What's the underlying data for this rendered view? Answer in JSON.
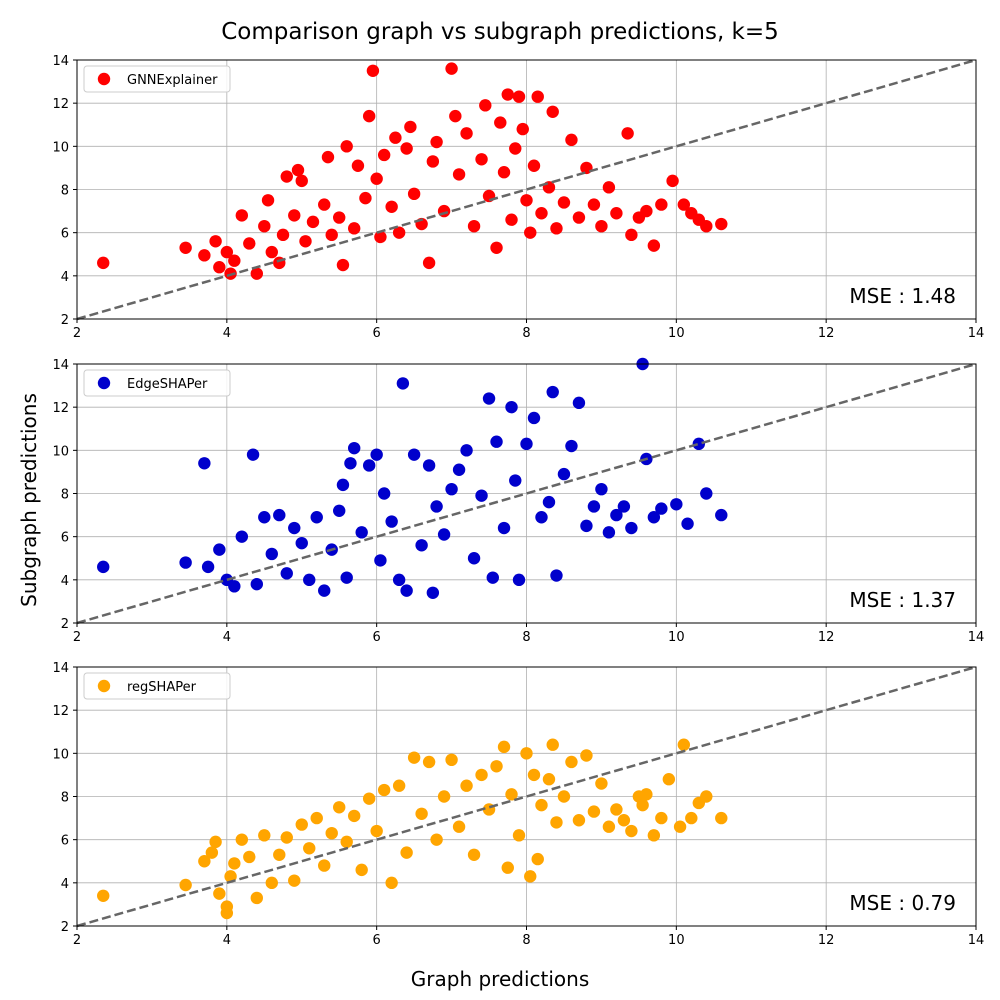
{
  "figure": {
    "title": "Comparison graph vs subgraph predictions, k=5",
    "xlabel": "Graph predictions",
    "ylabel": "Subgraph predictions"
  },
  "chart_data": [
    {
      "type": "scatter",
      "legend": "GNNExplainer",
      "color": "#ff0000",
      "mse_text": "MSE : 1.48",
      "xlim": [
        2,
        14
      ],
      "ylim": [
        2,
        14
      ],
      "xticks": [
        "2",
        "4",
        "6",
        "8",
        "10",
        "12",
        "14"
      ],
      "yticks": [
        "2",
        "4",
        "6",
        "8",
        "10",
        "12",
        "14"
      ],
      "grid": true,
      "legend_position": "top-left",
      "reference_line": {
        "style": "dashed",
        "color": "#666666",
        "from": [
          2,
          2
        ],
        "to": [
          14,
          14
        ]
      },
      "points": [
        [
          2.35,
          4.6
        ],
        [
          3.45,
          5.3
        ],
        [
          3.7,
          4.95
        ],
        [
          3.85,
          5.6
        ],
        [
          3.9,
          4.4
        ],
        [
          4.0,
          5.1
        ],
        [
          4.05,
          4.1
        ],
        [
          4.1,
          4.7
        ],
        [
          4.2,
          6.8
        ],
        [
          4.3,
          5.5
        ],
        [
          4.4,
          4.1
        ],
        [
          4.5,
          6.3
        ],
        [
          4.55,
          7.5
        ],
        [
          4.6,
          5.1
        ],
        [
          4.7,
          4.6
        ],
        [
          4.75,
          5.9
        ],
        [
          4.8,
          8.6
        ],
        [
          4.9,
          6.8
        ],
        [
          4.95,
          8.9
        ],
        [
          5.0,
          8.4
        ],
        [
          5.05,
          5.6
        ],
        [
          5.15,
          6.5
        ],
        [
          5.3,
          7.3
        ],
        [
          5.35,
          9.5
        ],
        [
          5.4,
          5.9
        ],
        [
          5.5,
          6.7
        ],
        [
          5.55,
          4.5
        ],
        [
          5.6,
          10.0
        ],
        [
          5.7,
          6.2
        ],
        [
          5.75,
          9.1
        ],
        [
          5.85,
          7.6
        ],
        [
          5.9,
          11.4
        ],
        [
          5.95,
          13.5
        ],
        [
          6.0,
          8.5
        ],
        [
          6.05,
          5.8
        ],
        [
          6.1,
          9.6
        ],
        [
          6.2,
          7.2
        ],
        [
          6.25,
          10.4
        ],
        [
          6.3,
          6.0
        ],
        [
          6.4,
          9.9
        ],
        [
          6.45,
          10.9
        ],
        [
          6.5,
          7.8
        ],
        [
          6.6,
          6.4
        ],
        [
          6.7,
          4.6
        ],
        [
          6.75,
          9.3
        ],
        [
          6.8,
          10.2
        ],
        [
          6.9,
          7.0
        ],
        [
          7.0,
          13.6
        ],
        [
          7.05,
          11.4
        ],
        [
          7.1,
          8.7
        ],
        [
          7.2,
          10.6
        ],
        [
          7.3,
          6.3
        ],
        [
          7.4,
          9.4
        ],
        [
          7.45,
          11.9
        ],
        [
          7.5,
          7.7
        ],
        [
          7.6,
          5.3
        ],
        [
          7.65,
          11.1
        ],
        [
          7.7,
          8.8
        ],
        [
          7.75,
          12.4
        ],
        [
          7.8,
          6.6
        ],
        [
          7.85,
          9.9
        ],
        [
          7.9,
          12.3
        ],
        [
          7.95,
          10.8
        ],
        [
          8.0,
          7.5
        ],
        [
          8.05,
          6.0
        ],
        [
          8.1,
          9.1
        ],
        [
          8.15,
          12.3
        ],
        [
          8.2,
          6.9
        ],
        [
          8.3,
          8.1
        ],
        [
          8.35,
          11.6
        ],
        [
          8.4,
          6.2
        ],
        [
          8.5,
          7.4
        ],
        [
          8.6,
          10.3
        ],
        [
          8.7,
          6.7
        ],
        [
          8.8,
          9.0
        ],
        [
          8.9,
          7.3
        ],
        [
          9.0,
          6.3
        ],
        [
          9.1,
          8.1
        ],
        [
          9.2,
          6.9
        ],
        [
          9.35,
          10.6
        ],
        [
          9.4,
          5.9
        ],
        [
          9.5,
          6.7
        ],
        [
          9.6,
          7.0
        ],
        [
          9.7,
          5.4
        ],
        [
          9.8,
          7.3
        ],
        [
          9.95,
          8.4
        ],
        [
          10.1,
          7.3
        ],
        [
          10.2,
          6.9
        ],
        [
          10.3,
          6.6
        ],
        [
          10.4,
          6.3
        ],
        [
          10.6,
          6.4
        ]
      ]
    },
    {
      "type": "scatter",
      "legend": "EdgeSHAPer",
      "color": "#0000cc",
      "mse_text": "MSE : 1.37",
      "xlim": [
        2,
        14
      ],
      "ylim": [
        2,
        14
      ],
      "xticks": [
        "2",
        "4",
        "6",
        "8",
        "10",
        "12",
        "14"
      ],
      "yticks": [
        "2",
        "4",
        "6",
        "8",
        "10",
        "12",
        "14"
      ],
      "grid": true,
      "legend_position": "top-left",
      "reference_line": {
        "style": "dashed",
        "color": "#666666",
        "from": [
          2,
          2
        ],
        "to": [
          14,
          14
        ]
      },
      "points": [
        [
          2.35,
          4.6
        ],
        [
          3.45,
          4.8
        ],
        [
          3.7,
          9.4
        ],
        [
          3.75,
          4.6
        ],
        [
          3.9,
          5.4
        ],
        [
          4.0,
          4.0
        ],
        [
          4.1,
          3.7
        ],
        [
          4.2,
          6.0
        ],
        [
          4.35,
          9.8
        ],
        [
          4.4,
          3.8
        ],
        [
          4.5,
          6.9
        ],
        [
          4.6,
          5.2
        ],
        [
          4.7,
          7.0
        ],
        [
          4.8,
          4.3
        ],
        [
          4.9,
          6.4
        ],
        [
          5.0,
          5.7
        ],
        [
          5.1,
          4.0
        ],
        [
          5.2,
          6.9
        ],
        [
          5.3,
          3.5
        ],
        [
          5.4,
          5.4
        ],
        [
          5.5,
          7.2
        ],
        [
          5.55,
          8.4
        ],
        [
          5.6,
          4.1
        ],
        [
          5.65,
          9.4
        ],
        [
          5.7,
          10.1
        ],
        [
          5.8,
          6.2
        ],
        [
          5.9,
          9.3
        ],
        [
          6.0,
          9.8
        ],
        [
          6.05,
          4.9
        ],
        [
          6.1,
          8.0
        ],
        [
          6.2,
          6.7
        ],
        [
          6.3,
          4.0
        ],
        [
          6.35,
          13.1
        ],
        [
          6.4,
          3.5
        ],
        [
          6.5,
          9.8
        ],
        [
          6.6,
          5.6
        ],
        [
          6.7,
          9.3
        ],
        [
          6.75,
          3.4
        ],
        [
          6.8,
          7.4
        ],
        [
          6.9,
          6.1
        ],
        [
          7.0,
          8.2
        ],
        [
          7.1,
          9.1
        ],
        [
          7.2,
          10.0
        ],
        [
          7.3,
          5.0
        ],
        [
          7.4,
          7.9
        ],
        [
          7.5,
          12.4
        ],
        [
          7.55,
          4.1
        ],
        [
          7.6,
          10.4
        ],
        [
          7.7,
          6.4
        ],
        [
          7.8,
          12.0
        ],
        [
          7.85,
          8.6
        ],
        [
          7.9,
          4.0
        ],
        [
          8.0,
          10.3
        ],
        [
          8.1,
          11.5
        ],
        [
          8.2,
          6.9
        ],
        [
          8.3,
          7.6
        ],
        [
          8.35,
          12.7
        ],
        [
          8.4,
          4.2
        ],
        [
          8.5,
          8.9
        ],
        [
          8.6,
          10.2
        ],
        [
          8.7,
          12.2
        ],
        [
          8.8,
          6.5
        ],
        [
          8.9,
          7.4
        ],
        [
          9.0,
          8.2
        ],
        [
          9.1,
          6.2
        ],
        [
          9.2,
          7.0
        ],
        [
          9.3,
          7.4
        ],
        [
          9.4,
          6.4
        ],
        [
          9.55,
          14.0
        ],
        [
          9.6,
          9.6
        ],
        [
          9.7,
          6.9
        ],
        [
          9.8,
          7.3
        ],
        [
          10.0,
          7.5
        ],
        [
          10.15,
          6.6
        ],
        [
          10.3,
          10.3
        ],
        [
          10.4,
          8.0
        ],
        [
          10.6,
          7.0
        ]
      ]
    },
    {
      "type": "scatter",
      "legend": "regSHAPer",
      "color": "#ffa500",
      "mse_text": "MSE : 0.79",
      "xlim": [
        2,
        14
      ],
      "ylim": [
        2,
        14
      ],
      "xticks": [
        "2",
        "4",
        "6",
        "8",
        "10",
        "12",
        "14"
      ],
      "yticks": [
        "2",
        "4",
        "6",
        "8",
        "10",
        "12",
        "14"
      ],
      "grid": true,
      "legend_position": "top-left",
      "reference_line": {
        "style": "dashed",
        "color": "#666666",
        "from": [
          2,
          2
        ],
        "to": [
          14,
          14
        ]
      },
      "points": [
        [
          2.35,
          3.4
        ],
        [
          3.45,
          3.9
        ],
        [
          3.7,
          5.0
        ],
        [
          3.8,
          5.4
        ],
        [
          3.85,
          5.9
        ],
        [
          3.9,
          3.5
        ],
        [
          4.0,
          2.6
        ],
        [
          4.0,
          2.9
        ],
        [
          4.05,
          4.3
        ],
        [
          4.1,
          4.9
        ],
        [
          4.2,
          6.0
        ],
        [
          4.3,
          5.2
        ],
        [
          4.4,
          3.3
        ],
        [
          4.5,
          6.2
        ],
        [
          4.6,
          4.0
        ],
        [
          4.7,
          5.3
        ],
        [
          4.8,
          6.1
        ],
        [
          4.9,
          4.1
        ],
        [
          5.0,
          6.7
        ],
        [
          5.1,
          5.6
        ],
        [
          5.2,
          7.0
        ],
        [
          5.3,
          4.8
        ],
        [
          5.4,
          6.3
        ],
        [
          5.5,
          7.5
        ],
        [
          5.6,
          5.9
        ],
        [
          5.7,
          7.1
        ],
        [
          5.8,
          4.6
        ],
        [
          5.9,
          7.9
        ],
        [
          6.0,
          6.4
        ],
        [
          6.1,
          8.3
        ],
        [
          6.2,
          4.0
        ],
        [
          6.3,
          8.5
        ],
        [
          6.4,
          5.4
        ],
        [
          6.5,
          9.8
        ],
        [
          6.6,
          7.2
        ],
        [
          6.7,
          9.6
        ],
        [
          6.8,
          6.0
        ],
        [
          6.9,
          8.0
        ],
        [
          7.0,
          9.7
        ],
        [
          7.1,
          6.6
        ],
        [
          7.2,
          8.5
        ],
        [
          7.3,
          5.3
        ],
        [
          7.4,
          9.0
        ],
        [
          7.5,
          7.4
        ],
        [
          7.6,
          9.4
        ],
        [
          7.7,
          10.3
        ],
        [
          7.75,
          4.7
        ],
        [
          7.8,
          8.1
        ],
        [
          7.9,
          6.2
        ],
        [
          8.0,
          10.0
        ],
        [
          8.05,
          4.3
        ],
        [
          8.1,
          9.0
        ],
        [
          8.15,
          5.1
        ],
        [
          8.2,
          7.6
        ],
        [
          8.3,
          8.8
        ],
        [
          8.35,
          10.4
        ],
        [
          8.4,
          6.8
        ],
        [
          8.5,
          8.0
        ],
        [
          8.6,
          9.6
        ],
        [
          8.7,
          6.9
        ],
        [
          8.8,
          9.9
        ],
        [
          8.9,
          7.3
        ],
        [
          9.0,
          8.6
        ],
        [
          9.1,
          6.6
        ],
        [
          9.2,
          7.4
        ],
        [
          9.3,
          6.9
        ],
        [
          9.4,
          6.4
        ],
        [
          9.5,
          8.0
        ],
        [
          9.55,
          7.6
        ],
        [
          9.6,
          8.1
        ],
        [
          9.7,
          6.2
        ],
        [
          9.8,
          7.0
        ],
        [
          9.9,
          8.8
        ],
        [
          10.05,
          6.6
        ],
        [
          10.1,
          10.4
        ],
        [
          10.2,
          7.0
        ],
        [
          10.3,
          7.7
        ],
        [
          10.4,
          8.0
        ],
        [
          10.6,
          7.0
        ]
      ]
    }
  ]
}
